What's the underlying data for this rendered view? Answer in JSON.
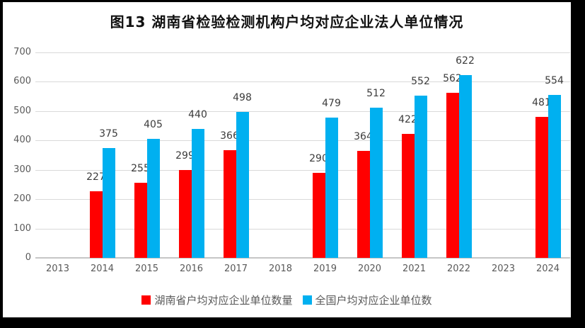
{
  "title": "图13 湖南省检验检测机构户均对应企业法人单位情况",
  "colors": {
    "series_hunan": "#FF0000",
    "series_national": "#00B0F0",
    "gridline": "#d9d9d9",
    "axis_line": "#c6c6c6",
    "tick_text": "#595959",
    "data_label_text": "#3b3b3b",
    "frame": "#000000",
    "background": "#ffffff"
  },
  "chart_data": {
    "type": "bar",
    "title": "图13 湖南省检验检测机构户均对应企业法人单位情况",
    "categories": [
      "2013",
      "2014",
      "2015",
      "2016",
      "2017",
      "2018",
      "2019",
      "2020",
      "2021",
      "2022",
      "2023",
      "2024"
    ],
    "series": [
      {
        "name": "湖南省户均对应企业单位数量",
        "color": "#FF0000",
        "values": [
          null,
          227,
          255,
          299,
          366,
          null,
          290,
          364,
          422,
          562,
          null,
          481
        ]
      },
      {
        "name": "全国户均对应企业单位数",
        "color": "#00B0F0",
        "values": [
          null,
          375,
          405,
          440,
          498,
          null,
          479,
          512,
          552,
          622,
          null,
          554
        ]
      }
    ],
    "xlabel": "",
    "ylabel": "",
    "ylim": [
      0,
      700
    ],
    "ytick_step": 100,
    "yticks": [
      "0",
      "100",
      "200",
      "300",
      "400",
      "500",
      "600",
      "700"
    ],
    "grid": true,
    "data_labels": true,
    "legend_position": "bottom"
  }
}
